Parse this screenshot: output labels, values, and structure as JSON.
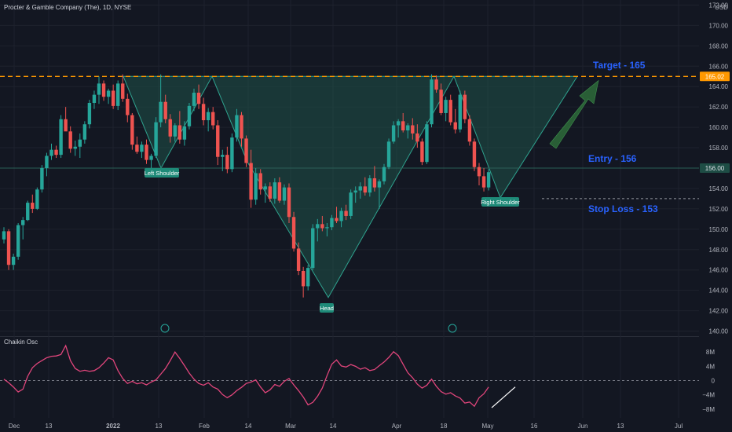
{
  "header": {
    "title": "Procter & Gamble Company (The), 1D, NYSE",
    "currency": "USD"
  },
  "oscillator": {
    "title": "Chaikin Osc"
  },
  "colors": {
    "background": "#131722",
    "up": "#26a69a",
    "down": "#ef5350",
    "target_line": "#ff9800",
    "annotation_text": "#2962ff",
    "pattern_fill": "#1f5248",
    "pattern_stroke": "#2fa38f",
    "osc_line": "#e0457b",
    "arrow": "#2e6b3a"
  },
  "annotations": {
    "target": "Target - 165",
    "entry": "Entry - 156",
    "stop": "Stop Loss - 153",
    "left_shoulder": "Left Shoulder",
    "head": "Head",
    "right_shoulder": "Right Shoulder",
    "price_badge_target": "165.02",
    "price_badge_entry": "156.00"
  },
  "chart_data": {
    "type": "candlestick",
    "price_axis": {
      "ticks": [
        140,
        142,
        144,
        146,
        148,
        150,
        152,
        154,
        156,
        158,
        160,
        162,
        164,
        166,
        168,
        170,
        172
      ],
      "labels": [
        "140.00",
        "142.00",
        "144.00",
        "146.00",
        "148.00",
        "150.00",
        "152.00",
        "154.00",
        "156.00",
        "158.00",
        "160.00",
        "162.00",
        "164.00",
        "166.00",
        "168.00",
        "170.00",
        "172.00"
      ],
      "range": [
        139.5,
        172.5
      ]
    },
    "osc_axis": {
      "ticks": [
        -8,
        -4,
        0,
        4,
        8
      ],
      "labels": [
        "−8M",
        "−4M",
        "0",
        "4M",
        "8M"
      ]
    },
    "time_labels": [
      "Dec",
      "13",
      "2022",
      "13",
      "Feb",
      "14",
      "Mar",
      "14",
      "Apr",
      "18",
      "May",
      "16",
      "Jun",
      "13",
      "Jul"
    ],
    "levels": {
      "target": 165,
      "entry": 156,
      "stop": 153
    },
    "pattern": {
      "left_shoulder": 156.0,
      "head": 143.3,
      "right_shoulder": 153.1,
      "neckline": [
        165.0,
        165.0,
        165.0
      ]
    },
    "candles": [
      [
        149,
        150.2,
        148.6,
        149.8
      ],
      [
        149.8,
        150,
        146,
        146.5
      ],
      [
        146.5,
        147.6,
        146,
        147.3
      ],
      [
        147.3,
        150.6,
        147,
        150.4
      ],
      [
        150.4,
        151.2,
        149,
        150.9
      ],
      [
        150.9,
        152.8,
        150.8,
        152.6
      ],
      [
        152.6,
        153.4,
        151.6,
        152
      ],
      [
        152,
        154.1,
        151.9,
        153.9
      ],
      [
        153.9,
        156.3,
        153.6,
        156
      ],
      [
        156,
        157.5,
        155.2,
        157.2
      ],
      [
        157.2,
        158.4,
        156.8,
        157.8
      ],
      [
        157.8,
        158.2,
        157,
        157.3
      ],
      [
        157.3,
        161.2,
        157,
        160.8
      ],
      [
        160.8,
        162,
        159.8,
        159.6
      ],
      [
        159.6,
        160.1,
        157.5,
        157.9
      ],
      [
        157.9,
        158.7,
        157.2,
        158.1
      ],
      [
        158.1,
        159.4,
        157,
        158.8
      ],
      [
        158.8,
        160.6,
        158.4,
        160.3
      ],
      [
        160.3,
        162.7,
        159.9,
        162.4
      ],
      [
        162.4,
        163.6,
        161.8,
        163.2
      ],
      [
        163.2,
        165,
        162.3,
        164.3
      ],
      [
        164.3,
        164.6,
        162.6,
        163
      ],
      [
        163,
        163.8,
        162.3,
        163.6
      ],
      [
        163.6,
        164.2,
        161.8,
        162.1
      ],
      [
        162.1,
        164.6,
        161.7,
        164.3
      ],
      [
        164.3,
        165.2,
        162.5,
        162.8
      ],
      [
        162.8,
        163.3,
        160.5,
        161.2
      ],
      [
        161.2,
        161.4,
        157.8,
        158.3
      ],
      [
        158.3,
        159.1,
        157.4,
        157.6
      ],
      [
        157.6,
        158.6,
        157,
        158.3
      ],
      [
        158.3,
        158.8,
        156.4,
        156.8
      ],
      [
        156.8,
        157.4,
        156,
        157.2
      ],
      [
        157.2,
        161,
        157,
        160.5
      ],
      [
        160.5,
        165.2,
        160,
        162.5
      ],
      [
        162.5,
        163.2,
        160.4,
        160.8
      ],
      [
        160.8,
        161.3,
        158.5,
        159.1
      ],
      [
        159.1,
        160.4,
        158.6,
        160.2
      ],
      [
        160.2,
        161.6,
        158.4,
        158.8
      ],
      [
        158.8,
        160.6,
        158.2,
        160.1
      ],
      [
        160.1,
        162.4,
        159.8,
        162.1
      ],
      [
        162.1,
        163.8,
        161.6,
        163.4
      ],
      [
        163.4,
        164.2,
        161.8,
        162.3
      ],
      [
        162.3,
        162.9,
        160.2,
        160.7
      ],
      [
        160.7,
        161.9,
        159.6,
        161.5
      ],
      [
        161.5,
        162,
        159.8,
        160.2
      ],
      [
        160.2,
        160.7,
        156.3,
        157.1
      ],
      [
        157.1,
        157.8,
        155.7,
        157.3
      ],
      [
        157.3,
        158.1,
        155.5,
        155.9
      ],
      [
        155.9,
        159.4,
        155.6,
        159
      ],
      [
        159,
        161.8,
        158.6,
        161.2
      ],
      [
        161.2,
        161.5,
        158.1,
        158.9
      ],
      [
        158.9,
        159.2,
        156.1,
        156.5
      ],
      [
        156.5,
        157.8,
        152.1,
        152.9
      ],
      [
        152.9,
        156,
        152.4,
        155.5
      ],
      [
        155.5,
        155.9,
        153.4,
        153.9
      ],
      [
        153.9,
        154.5,
        152.6,
        154.2
      ],
      [
        154.2,
        154.6,
        152.7,
        153
      ],
      [
        153,
        155,
        152.5,
        154.6
      ],
      [
        154.6,
        155.1,
        152.6,
        152.8
      ],
      [
        152.8,
        154.4,
        152.4,
        154.1
      ],
      [
        154.1,
        154.5,
        150.6,
        151.2
      ],
      [
        151.2,
        151.7,
        147.8,
        148.1
      ],
      [
        148.1,
        148.7,
        145.5,
        145.9
      ],
      [
        145.9,
        146.3,
        143.3,
        144.4
      ],
      [
        144.4,
        146.5,
        144,
        146.2
      ],
      [
        146.2,
        150.5,
        146,
        150.1
      ],
      [
        150.1,
        151,
        148.8,
        150.5
      ],
      [
        150.5,
        151.3,
        149.8,
        150.1
      ],
      [
        150.1,
        150.6,
        149.3,
        150.2
      ],
      [
        150.2,
        151.4,
        149.9,
        151.1
      ],
      [
        151.1,
        152.2,
        150.6,
        150.8
      ],
      [
        150.8,
        152.1,
        150.2,
        151.8
      ],
      [
        151.8,
        152.4,
        150.9,
        151.3
      ],
      [
        151.3,
        153.9,
        151,
        153.6
      ],
      [
        153.6,
        154.2,
        152.6,
        153.8
      ],
      [
        153.8,
        154.6,
        153,
        154.2
      ],
      [
        154.2,
        155.1,
        153.3,
        153.6
      ],
      [
        153.6,
        155.3,
        153.2,
        155
      ],
      [
        155,
        156.2,
        153.7,
        154.1
      ],
      [
        154.1,
        154.9,
        152,
        154.7
      ],
      [
        154.7,
        156.4,
        154.4,
        156.1
      ],
      [
        156.1,
        158.9,
        155.9,
        158.6
      ],
      [
        158.6,
        160.6,
        158.4,
        160.2
      ],
      [
        160.2,
        160.8,
        159,
        160.6
      ],
      [
        160.6,
        161.4,
        159.5,
        159.7
      ],
      [
        159.7,
        160.4,
        158.9,
        160.2
      ],
      [
        160.2,
        160.9,
        158.8,
        159.4
      ],
      [
        159.4,
        160.3,
        158,
        158.6
      ],
      [
        158.6,
        158.9,
        156.3,
        156.6
      ],
      [
        156.6,
        160.6,
        156.4,
        160.3
      ],
      [
        160.3,
        165.2,
        160,
        164.7
      ],
      [
        164.7,
        165.1,
        163.4,
        163.7
      ],
      [
        163.7,
        164.3,
        161.2,
        161.4
      ],
      [
        161.4,
        163,
        160.6,
        162.7
      ],
      [
        162.7,
        163.2,
        160.2,
        160.5
      ],
      [
        160.5,
        161.8,
        159.4,
        159.8
      ],
      [
        159.8,
        163.6,
        159.5,
        163.2
      ],
      [
        163.2,
        163.6,
        160.4,
        160.8
      ],
      [
        160.8,
        161.2,
        158.2,
        158.6
      ],
      [
        158.6,
        158.9,
        155.7,
        156.1
      ],
      [
        156.1,
        156.5,
        154.3,
        155.2
      ],
      [
        155.2,
        156,
        153.7,
        154.1
      ],
      [
        154.1,
        155.9,
        153.8,
        155.6
      ]
    ],
    "oscillator_values": [
      0.4,
      -0.6,
      -1.8,
      -3.2,
      -2.4,
      1.2,
      3.6,
      4.8,
      5.6,
      6.4,
      6.8,
      6.9,
      7.3,
      9.8,
      5.6,
      3.4,
      2.6,
      2.9,
      2.6,
      2.8,
      3.6,
      4.9,
      6.4,
      5.8,
      2.8,
      0.6,
      -0.8,
      -0.2,
      -0.9,
      -0.6,
      -1.2,
      -0.4,
      0.2,
      1.8,
      3.4,
      5.6,
      8.0,
      6.2,
      4.2,
      2.1,
      0.4,
      -0.8,
      -1.3,
      -0.6,
      -1.8,
      -2.4,
      -3.9,
      -4.8,
      -4.0,
      -2.8,
      -1.9,
      -0.8,
      -0.4,
      0.2,
      -1.8,
      -3.4,
      -2.6,
      -1.1,
      -1.6,
      -0.2,
      0.6,
      -1.2,
      -2.8,
      -4.6,
      -6.8,
      -6.1,
      -4.4,
      -2.1,
      1.4,
      4.6,
      5.8,
      4.1,
      3.8,
      4.5,
      4.0,
      3.2,
      3.6,
      2.8,
      3.1,
      4.2,
      5.2,
      6.5,
      8.1,
      7.0,
      4.6,
      2.2,
      0.8,
      -1.0,
      -2.1,
      -1.3,
      0.4,
      -1.6,
      -3.1,
      -3.8,
      -3.4,
      -4.3,
      -4.9,
      -6.3,
      -6.0,
      -7.2,
      -4.8,
      -3.7,
      -1.8
    ]
  }
}
